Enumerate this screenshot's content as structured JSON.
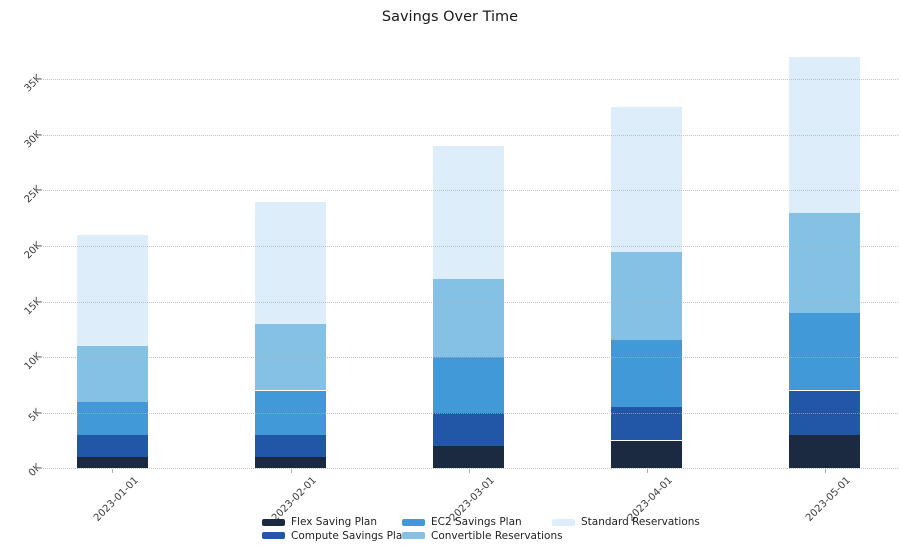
{
  "title": "Savings Over Time",
  "chart_data": {
    "type": "bar",
    "stacked": true,
    "title": "Savings Over Time",
    "xlabel": "",
    "ylabel": "",
    "categories": [
      "2023-01-01",
      "2023-02-01",
      "2023-03-01",
      "2023-04-01",
      "2023-05-01"
    ],
    "series": [
      {
        "name": "Flex Saving Plan",
        "color": "#1b2a40",
        "values": [
          1000,
          1000,
          2000,
          2500,
          3000
        ]
      },
      {
        "name": "Compute Savings Plan",
        "color": "#2256a6",
        "values": [
          2000,
          2000,
          3000,
          3000,
          4000
        ]
      },
      {
        "name": "EC2 Savings Plan",
        "color": "#4299d8",
        "values": [
          3000,
          4000,
          5000,
          6000,
          7000
        ]
      },
      {
        "name": "Convertible Reservations",
        "color": "#85c1e4",
        "values": [
          5000,
          6000,
          7000,
          8000,
          9000
        ]
      },
      {
        "name": "Standard Reservations",
        "color": "#ddeefa",
        "values": [
          10000,
          11000,
          12000,
          13000,
          14000
        ]
      }
    ],
    "totals": [
      21000,
      24000,
      29000,
      32500,
      37000
    ],
    "y_ticks": [
      {
        "value": 0,
        "label": "0K"
      },
      {
        "value": 5000,
        "label": "5K"
      },
      {
        "value": 10000,
        "label": "10K"
      },
      {
        "value": 15000,
        "label": "15K"
      },
      {
        "value": 20000,
        "label": "20K"
      },
      {
        "value": 25000,
        "label": "25K"
      },
      {
        "value": 30000,
        "label": "30K"
      },
      {
        "value": 35000,
        "label": "35K"
      }
    ],
    "ylim": [
      0,
      38500
    ],
    "grid": "horizontal-dotted",
    "tick_angle": -45,
    "legend_position": "bottom-center"
  }
}
